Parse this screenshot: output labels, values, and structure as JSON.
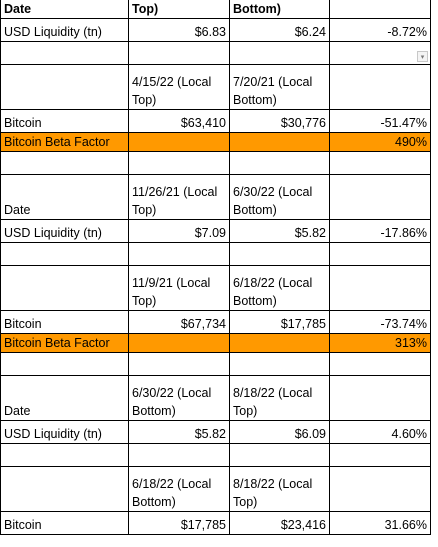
{
  "rows": [
    {
      "type": "head",
      "cells": [
        "Date",
        "Top)",
        "Bottom)",
        ""
      ],
      "first": true
    },
    {
      "type": "data",
      "cells": [
        "USD Liquidity (tn)",
        "$6.83",
        "$6.24",
        "-8.72%"
      ]
    },
    {
      "type": "gap-filter",
      "cells": [
        "",
        "",
        "",
        ""
      ]
    },
    {
      "type": "head",
      "cells": [
        "",
        "4/15/22 (Local Top)",
        "7/20/21 (Local Bottom)",
        ""
      ]
    },
    {
      "type": "data",
      "cells": [
        "Bitcoin",
        "$63,410",
        "$30,776",
        "-51.47%"
      ]
    },
    {
      "type": "beta",
      "cells": [
        "Bitcoin Beta Factor",
        "",
        "",
        "490%"
      ]
    },
    {
      "type": "gap",
      "cells": [
        "",
        "",
        "",
        ""
      ]
    },
    {
      "type": "head",
      "cells": [
        "Date",
        "11/26/21 (Local Top)",
        "6/30/22 (Local Bottom)",
        ""
      ]
    },
    {
      "type": "data",
      "cells": [
        "USD Liquidity (tn)",
        "$7.09",
        "$5.82",
        "-17.86%"
      ]
    },
    {
      "type": "gap",
      "cells": [
        "",
        "",
        "",
        ""
      ]
    },
    {
      "type": "head",
      "cells": [
        "",
        "11/9/21 (Local Top)",
        "6/18/22 (Local Bottom)",
        ""
      ]
    },
    {
      "type": "data",
      "cells": [
        "Bitcoin",
        "$67,734",
        "$17,785",
        "-73.74%"
      ]
    },
    {
      "type": "beta",
      "cells": [
        "Bitcoin Beta Factor",
        "",
        "",
        "313%"
      ]
    },
    {
      "type": "gap",
      "cells": [
        "",
        "",
        "",
        ""
      ]
    },
    {
      "type": "head",
      "cells": [
        "Date",
        "6/30/22 (Local Bottom)",
        "8/18/22 (Local Top)",
        ""
      ]
    },
    {
      "type": "data",
      "cells": [
        "USD Liquidity (tn)",
        "$5.82",
        "$6.09",
        "4.60%"
      ]
    },
    {
      "type": "gap",
      "cells": [
        "",
        "",
        "",
        ""
      ]
    },
    {
      "type": "head",
      "cells": [
        "",
        "6/18/22 (Local Bottom)",
        "8/18/22 (Local Top)",
        ""
      ]
    },
    {
      "type": "data",
      "cells": [
        "Bitcoin",
        "$17,785",
        "$23,416",
        "31.66%"
      ]
    }
  ],
  "filter_icon": "chevron-down-icon",
  "colors": {
    "beta_highlight": "#ff9900",
    "grid": "#000000"
  }
}
